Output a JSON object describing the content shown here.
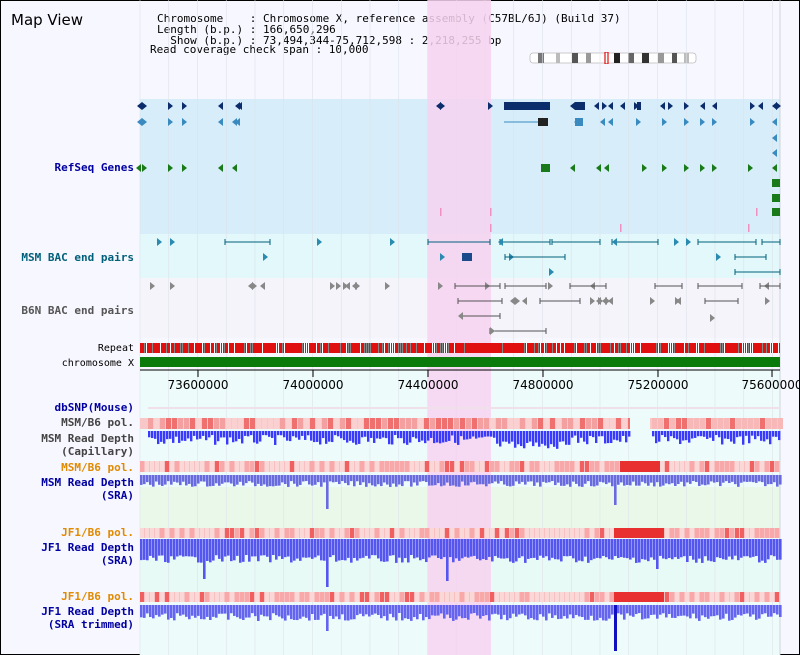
{
  "header": {
    "title": "Map View",
    "chromosome_line": "Chromosome    : Chromosome X, reference assembly (C57BL/6J) (Build 37)",
    "length_line": "Length (b.p.) : 166,650,296",
    "show_line": "  Show (b.p.) : 73,494,344-75,712,598 : 2,218,255 bp",
    "coverage_line": "Read coverage check span : 10,000"
  },
  "tracks": {
    "refseq": "RefSeq Genes",
    "msm_bac": "MSM BAC end pairs",
    "b6n_bac": "B6N BAC end pairs",
    "repeat": "Repeat",
    "chromosome": "chromosome X",
    "dbsnp": "dbSNP(Mouse)",
    "msm_b6_pol_cap": "MSM/B6 pol.",
    "msm_read_depth_cap_1": "MSM Read Depth",
    "msm_read_depth_cap_2": "(Capillary)",
    "msm_b6_pol_sra": "MSM/B6 pol.",
    "msm_read_depth_sra_1": "MSM Read Depth",
    "msm_read_depth_sra_2": "(SRA)",
    "jf1_b6_pol_1": "JF1/B6 pol.",
    "jf1_read_depth_1": "JF1 Read Depth",
    "jf1_read_depth_1b": "(SRA)",
    "jf1_b6_pol_2": "JF1/B6 pol.",
    "jf1_read_depth_2": "JF1 Read Depth",
    "jf1_read_depth_2b": "(SRA trimmed)"
  },
  "axis": {
    "ticks": [
      "73600000",
      "74000000",
      "74400000",
      "74800000",
      "75200000",
      "75600000"
    ]
  },
  "colors": {
    "highlight": "#f7d2f0",
    "refseq_bg": "#d7eefa",
    "bac_bg": "#e2f8fa",
    "b6n_bg": "#f4f4fa",
    "label_blue": "#0000a0",
    "label_teal": "#00607a",
    "label_gray": "#444444",
    "label_orange": "#e08a00",
    "depth_blue": "#3a3aff",
    "pol_pink": "#f6b0b0",
    "gene_dark": "#0b2d6b",
    "gene_mid": "#3a8ac0",
    "gene_green": "#1a7a1a",
    "repeat_red": "#e01010",
    "chrom_green": "#0a7a0a"
  }
}
